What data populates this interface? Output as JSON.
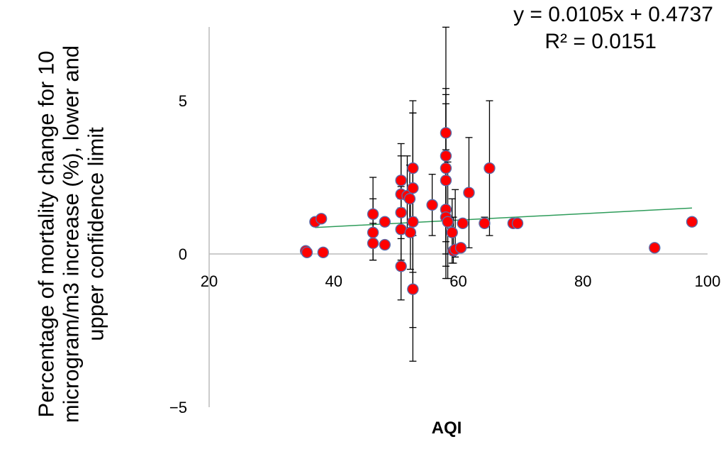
{
  "chart_data": {
    "type": "scatter",
    "xlabel": "AQI",
    "ylabel": "Percentage of mortality change for 10 microgram/m3 increase (%), lower and upper confidence limit",
    "xlim": [
      20,
      100
    ],
    "ylim": [
      -5,
      7.5
    ],
    "x_ticks": [
      20,
      40,
      60,
      80,
      100
    ],
    "y_ticks": [
      -5,
      0,
      5
    ],
    "grid": false,
    "marker_color": "#ff0000",
    "marker_edge_color": "#5b6aa8",
    "errorbar_color": "#000000",
    "trendline_color": "#2e9c5a",
    "axis_color": "#bbbbbb",
    "trendline": {
      "equation": "y = 0.0105x + 0.4737",
      "r_squared": "R² = 0.0151",
      "slope": 0.0105,
      "intercept": 0.4737,
      "x_range": [
        37,
        97.5
      ]
    },
    "points": [
      {
        "x": 35.5,
        "y": 0.1
      },
      {
        "x": 35.7,
        "y": 0.05
      },
      {
        "x": 37.0,
        "y": 1.05
      },
      {
        "x": 38.0,
        "y": 1.15
      },
      {
        "x": 38.3,
        "y": 0.05
      },
      {
        "x": 46.3,
        "y": 1.3,
        "lo": 0.3,
        "hi": 2.5
      },
      {
        "x": 46.3,
        "y": 0.7,
        "lo": -0.2,
        "hi": 1.8
      },
      {
        "x": 46.3,
        "y": 0.35,
        "lo": -0.2,
        "hi": 1.0
      },
      {
        "x": 48.2,
        "y": 1.05
      },
      {
        "x": 48.2,
        "y": 0.3
      },
      {
        "x": 50.8,
        "y": 2.4,
        "lo": 1.5,
        "hi": 3.2
      },
      {
        "x": 50.8,
        "y": 1.95,
        "lo": 0.9,
        "hi": 3.6
      },
      {
        "x": 50.8,
        "y": 1.35,
        "lo": 0.5,
        "hi": 2.2
      },
      {
        "x": 50.8,
        "y": 0.8,
        "lo": -0.2,
        "hi": 1.8
      },
      {
        "x": 50.8,
        "y": -0.4,
        "lo": -1.5,
        "hi": 0.7
      },
      {
        "x": 51.8,
        "y": 1.9,
        "lo": 0.8,
        "hi": 3.2
      },
      {
        "x": 52.2,
        "y": 1.8,
        "lo": 0.7,
        "hi": 2.9
      },
      {
        "x": 52.3,
        "y": 0.7,
        "lo": -0.5,
        "hi": 2.0
      },
      {
        "x": 52.7,
        "y": 2.8,
        "lo": 0.6,
        "hi": 5.0
      },
      {
        "x": 52.7,
        "y": 2.15,
        "lo": -0.6,
        "hi": 4.6
      },
      {
        "x": 52.7,
        "y": 1.05,
        "lo": -2.4,
        "hi": 4.6
      },
      {
        "x": 52.7,
        "y": -1.15,
        "lo": -3.5,
        "hi": 1.2
      },
      {
        "x": 55.8,
        "y": 1.6,
        "lo": 0.6,
        "hi": 2.6
      },
      {
        "x": 58.0,
        "y": 3.95,
        "lo": 2.4,
        "hi": 5.2
      },
      {
        "x": 58.0,
        "y": 3.2,
        "lo": 1.5,
        "hi": 5.4
      },
      {
        "x": 58.0,
        "y": 2.8,
        "lo": 0.4,
        "hi": 7.4
      },
      {
        "x": 58.0,
        "y": 2.4,
        "lo": 0.0,
        "hi": 4.9
      },
      {
        "x": 58.0,
        "y": 1.45,
        "lo": -0.4,
        "hi": 3.4
      },
      {
        "x": 58.0,
        "y": 1.2,
        "lo": -0.8,
        "hi": 3.1
      },
      {
        "x": 58.3,
        "y": 1.05,
        "lo": -0.8,
        "hi": 3.0
      },
      {
        "x": 59.0,
        "y": 0.7,
        "lo": -0.3,
        "hi": 1.8
      },
      {
        "x": 59.2,
        "y": 0.1,
        "lo": -0.3,
        "hi": 1.2
      },
      {
        "x": 59.5,
        "y": 0.15,
        "lo": -0.1,
        "hi": 2.1
      },
      {
        "x": 60.4,
        "y": 0.2
      },
      {
        "x": 60.7,
        "y": 1.0
      },
      {
        "x": 61.7,
        "y": 2.0,
        "lo": 0.2,
        "hi": 3.8
      },
      {
        "x": 64.2,
        "y": 1.0,
        "lo": 0.9,
        "hi": 1.2
      },
      {
        "x": 65.0,
        "y": 2.8,
        "lo": 0.6,
        "hi": 5.0
      },
      {
        "x": 68.8,
        "y": 1.0
      },
      {
        "x": 69.5,
        "y": 1.0
      },
      {
        "x": 91.5,
        "y": 0.2
      },
      {
        "x": 97.5,
        "y": 1.05
      }
    ]
  }
}
